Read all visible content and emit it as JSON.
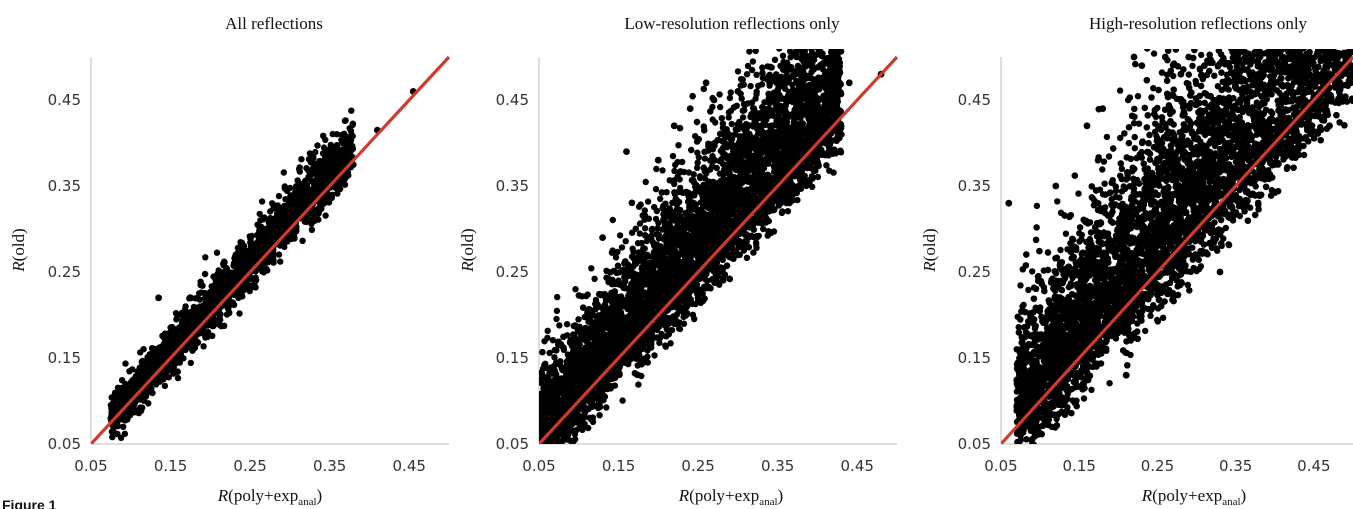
{
  "figure_label": "Figure 1",
  "colors": {
    "points": "#000000",
    "identity_line": "#d13a2b",
    "axis": "#bdbdbd"
  },
  "chart_data": [
    {
      "type": "scatter",
      "title": "All reflections",
      "xlabel": {
        "main": "R(poly+exp",
        "sub": "anal",
        "end": ")"
      },
      "ylabel": "R(old)",
      "xlim": [
        0.05,
        0.5
      ],
      "ylim": [
        0.05,
        0.5
      ],
      "xticks": [
        "0.05",
        "0.15",
        "0.25",
        "0.35",
        "0.45"
      ],
      "yticks": [
        "0.05",
        "0.15",
        "0.25",
        "0.35",
        "0.45"
      ],
      "grid": false,
      "reference_line": "y = x",
      "series": [
        {
          "points": [
            [
              0.075,
              0.08
            ],
            [
              0.085,
              0.09
            ],
            [
              0.1,
              0.11
            ],
            [
              0.11,
              0.12
            ],
            [
              0.12,
              0.135
            ],
            [
              0.13,
              0.145
            ],
            [
              0.135,
              0.22
            ],
            [
              0.14,
              0.13
            ],
            [
              0.15,
              0.17
            ],
            [
              0.16,
              0.18
            ],
            [
              0.17,
              0.19
            ],
            [
              0.18,
              0.205
            ],
            [
              0.19,
              0.21
            ],
            [
              0.2,
              0.225
            ],
            [
              0.21,
              0.235
            ],
            [
              0.22,
              0.245
            ],
            [
              0.23,
              0.26
            ],
            [
              0.24,
              0.265
            ],
            [
              0.25,
              0.275
            ],
            [
              0.26,
              0.285
            ],
            [
              0.27,
              0.3
            ],
            [
              0.28,
              0.305
            ],
            [
              0.29,
              0.315
            ],
            [
              0.3,
              0.325
            ],
            [
              0.31,
              0.335
            ],
            [
              0.32,
              0.345
            ],
            [
              0.33,
              0.355
            ],
            [
              0.34,
              0.37
            ],
            [
              0.35,
              0.375
            ],
            [
              0.36,
              0.38
            ],
            [
              0.375,
              0.385
            ],
            [
              0.41,
              0.415
            ],
            [
              0.455,
              0.46
            ]
          ],
          "cloud": {
            "x_range": [
              0.075,
              0.38
            ],
            "spread_up": 0.035,
            "spread_down": 0.012,
            "n": 2200
          }
        }
      ]
    },
    {
      "type": "scatter",
      "title": "Low-resolution reflections only",
      "xlabel": {
        "main": "R(poly+exp",
        "sub": "anal",
        "end": ")"
      },
      "ylabel": "R(old)",
      "xlim": [
        0.05,
        0.5
      ],
      "ylim": [
        0.05,
        0.5
      ],
      "xticks": [
        "0.05",
        "0.15",
        "0.25",
        "0.35",
        "0.45"
      ],
      "yticks": [
        "0.05",
        "0.15",
        "0.25",
        "0.35",
        "0.45"
      ],
      "grid": false,
      "reference_line": "y = x",
      "series": [
        {
          "points": [
            [
              0.05,
              0.055
            ],
            [
              0.06,
              0.07
            ],
            [
              0.13,
              0.29
            ],
            [
              0.16,
              0.39
            ],
            [
              0.2,
              0.38
            ],
            [
              0.21,
              0.32
            ],
            [
              0.22,
              0.42
            ],
            [
              0.24,
              0.44
            ],
            [
              0.26,
              0.47
            ],
            [
              0.27,
              0.45
            ],
            [
              0.3,
              0.46
            ],
            [
              0.32,
              0.44
            ],
            [
              0.34,
              0.47
            ],
            [
              0.36,
              0.49
            ],
            [
              0.38,
              0.45
            ],
            [
              0.4,
              0.42
            ],
            [
              0.41,
              0.48
            ],
            [
              0.42,
              0.49
            ],
            [
              0.43,
              0.41
            ],
            [
              0.44,
              0.47
            ],
            [
              0.48,
              0.48
            ],
            [
              0.21,
              0.19
            ],
            [
              0.25,
              0.22
            ],
            [
              0.3,
              0.27
            ],
            [
              0.33,
              0.32
            ]
          ],
          "cloud": {
            "x_range": [
              0.05,
              0.43
            ],
            "spread_up": 0.11,
            "spread_down": 0.02,
            "n": 6000
          }
        }
      ]
    },
    {
      "type": "scatter",
      "title": "High-resolution reflections only",
      "xlabel": {
        "main": "R(poly+exp",
        "sub": "anal",
        "end": ")"
      },
      "ylabel": "R(old)",
      "xlim": [
        0.05,
        0.5
      ],
      "ylim": [
        0.05,
        0.5
      ],
      "xticks": [
        "0.05",
        "0.15",
        "0.25",
        "0.35",
        "0.45"
      ],
      "yticks": [
        "0.05",
        "0.15",
        "0.25",
        "0.35",
        "0.45"
      ],
      "grid": false,
      "reference_line": "y = x",
      "series": [
        {
          "points": [
            [
              0.06,
              0.33
            ],
            [
              0.09,
              0.12
            ],
            [
              0.12,
              0.35
            ],
            [
              0.16,
              0.42
            ],
            [
              0.18,
              0.44
            ],
            [
              0.21,
              0.13
            ],
            [
              0.22,
              0.5
            ],
            [
              0.23,
              0.49
            ],
            [
              0.26,
              0.5
            ],
            [
              0.28,
              0.48
            ],
            [
              0.29,
              0.5
            ],
            [
              0.31,
              0.49
            ],
            [
              0.33,
              0.25
            ],
            [
              0.35,
              0.5
            ],
            [
              0.38,
              0.49
            ],
            [
              0.42,
              0.5
            ],
            [
              0.46,
              0.43
            ],
            [
              0.47,
              0.42
            ],
            [
              0.27,
              0.22
            ],
            [
              0.2,
              0.24
            ]
          ],
          "cloud": {
            "x_range": [
              0.07,
              0.5
            ],
            "spread_up": 0.16,
            "spread_down": 0.025,
            "n": 8000
          }
        }
      ]
    }
  ]
}
